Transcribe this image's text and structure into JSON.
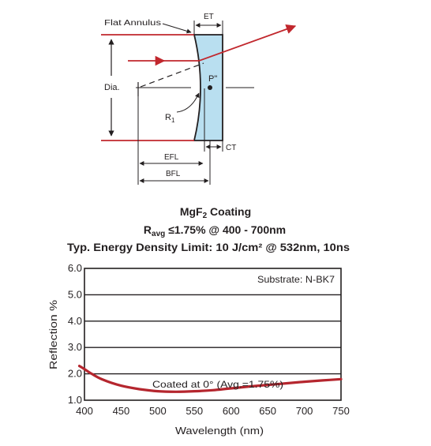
{
  "diagram": {
    "labels": {
      "flat_annulus": "Flat Annulus",
      "et": "ET",
      "dia": "Dia.",
      "p": "P\"",
      "r1": "R",
      "r1_sub": "1",
      "efl": "EFL",
      "bfl": "BFL",
      "ct": "CT"
    },
    "colors": {
      "lens_fill": "#b9dff0",
      "ray": "#c1272d",
      "ink": "#231f20"
    }
  },
  "coating": {
    "title_line1_pre": "MgF",
    "title_line1_sub": "2",
    "title_line1_post": " Coating",
    "line2_r": "R",
    "line2_sub": "avg",
    "line2_text": " ≤1.75% @ 400 - 700nm",
    "line3": "Typ. Energy Density Limit: 10 J/cm² @ 532nm, 10ns"
  },
  "chart_data": {
    "type": "line",
    "title": "",
    "xlabel": "Wavelength (nm)",
    "ylabel": "Reflection %",
    "xlim": [
      400,
      750
    ],
    "ylim": [
      1.0,
      6.0
    ],
    "xticks": [
      "400",
      "450",
      "500",
      "550",
      "600",
      "650",
      "700",
      "750"
    ],
    "yticks": [
      "1.0",
      "2.0",
      "3.0",
      "4.0",
      "5.0",
      "6.0"
    ],
    "grid": true,
    "annotations": {
      "substrate": "Substrate: N-BK7",
      "coated": "Coated at 0°  (Avg.=1.75%)"
    },
    "series": [
      {
        "color": "#b5262e",
        "x": [
          393,
          400,
          410,
          425,
          450,
          475,
          500,
          525,
          550,
          575,
          600,
          625,
          650,
          675,
          700,
          725,
          750
        ],
        "y": [
          2.3,
          2.18,
          2.0,
          1.78,
          1.55,
          1.42,
          1.34,
          1.32,
          1.34,
          1.38,
          1.45,
          1.52,
          1.58,
          1.64,
          1.7,
          1.75,
          1.8
        ]
      }
    ]
  }
}
